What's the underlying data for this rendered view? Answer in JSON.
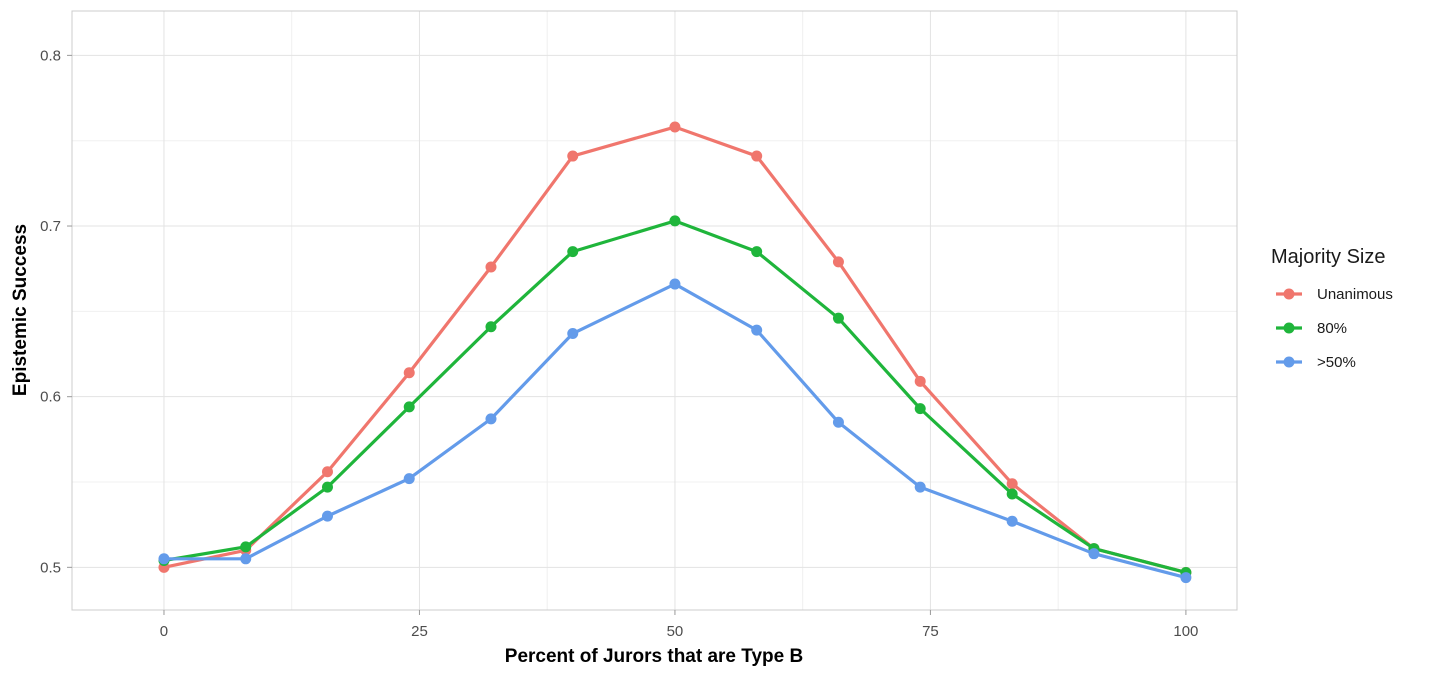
{
  "chart_data": {
    "type": "line",
    "title": "",
    "xlabel": "Percent of Jurors that are Type B",
    "ylabel": "Epistemic Success",
    "xlim": [
      -9,
      105
    ],
    "ylim": [
      0.475,
      0.826
    ],
    "x_ticks": [
      0,
      25,
      50,
      75,
      100
    ],
    "x_tick_labels": [
      "0",
      "25",
      "50",
      "75",
      "100"
    ],
    "y_ticks": [
      0.5,
      0.6,
      0.7,
      0.8
    ],
    "y_tick_labels": [
      "0.5",
      "0.6",
      "0.7",
      "0.8"
    ],
    "x": [
      0,
      8,
      16,
      24,
      32,
      40,
      50,
      58,
      66,
      74,
      83,
      91,
      100
    ],
    "grid": true,
    "legend": {
      "title": "Majority Size",
      "position": "right"
    },
    "series": [
      {
        "name": "Unanimous",
        "color": "#F0766D",
        "values": [
          0.5,
          0.51,
          0.556,
          0.614,
          0.676,
          0.741,
          0.758,
          0.741,
          0.679,
          0.609,
          0.549,
          0.511,
          0.497
        ]
      },
      {
        "name": "80%",
        "color": "#1FB53B",
        "values": [
          0.504,
          0.512,
          0.547,
          0.594,
          0.641,
          0.685,
          0.703,
          0.685,
          0.646,
          0.593,
          0.543,
          0.511,
          0.497
        ]
      },
      {
        "name": ">50%",
        "color": "#639BEA",
        "values": [
          0.505,
          0.505,
          0.53,
          0.552,
          0.587,
          0.637,
          0.666,
          0.639,
          0.585,
          0.547,
          0.527,
          0.508,
          0.494
        ]
      }
    ]
  }
}
